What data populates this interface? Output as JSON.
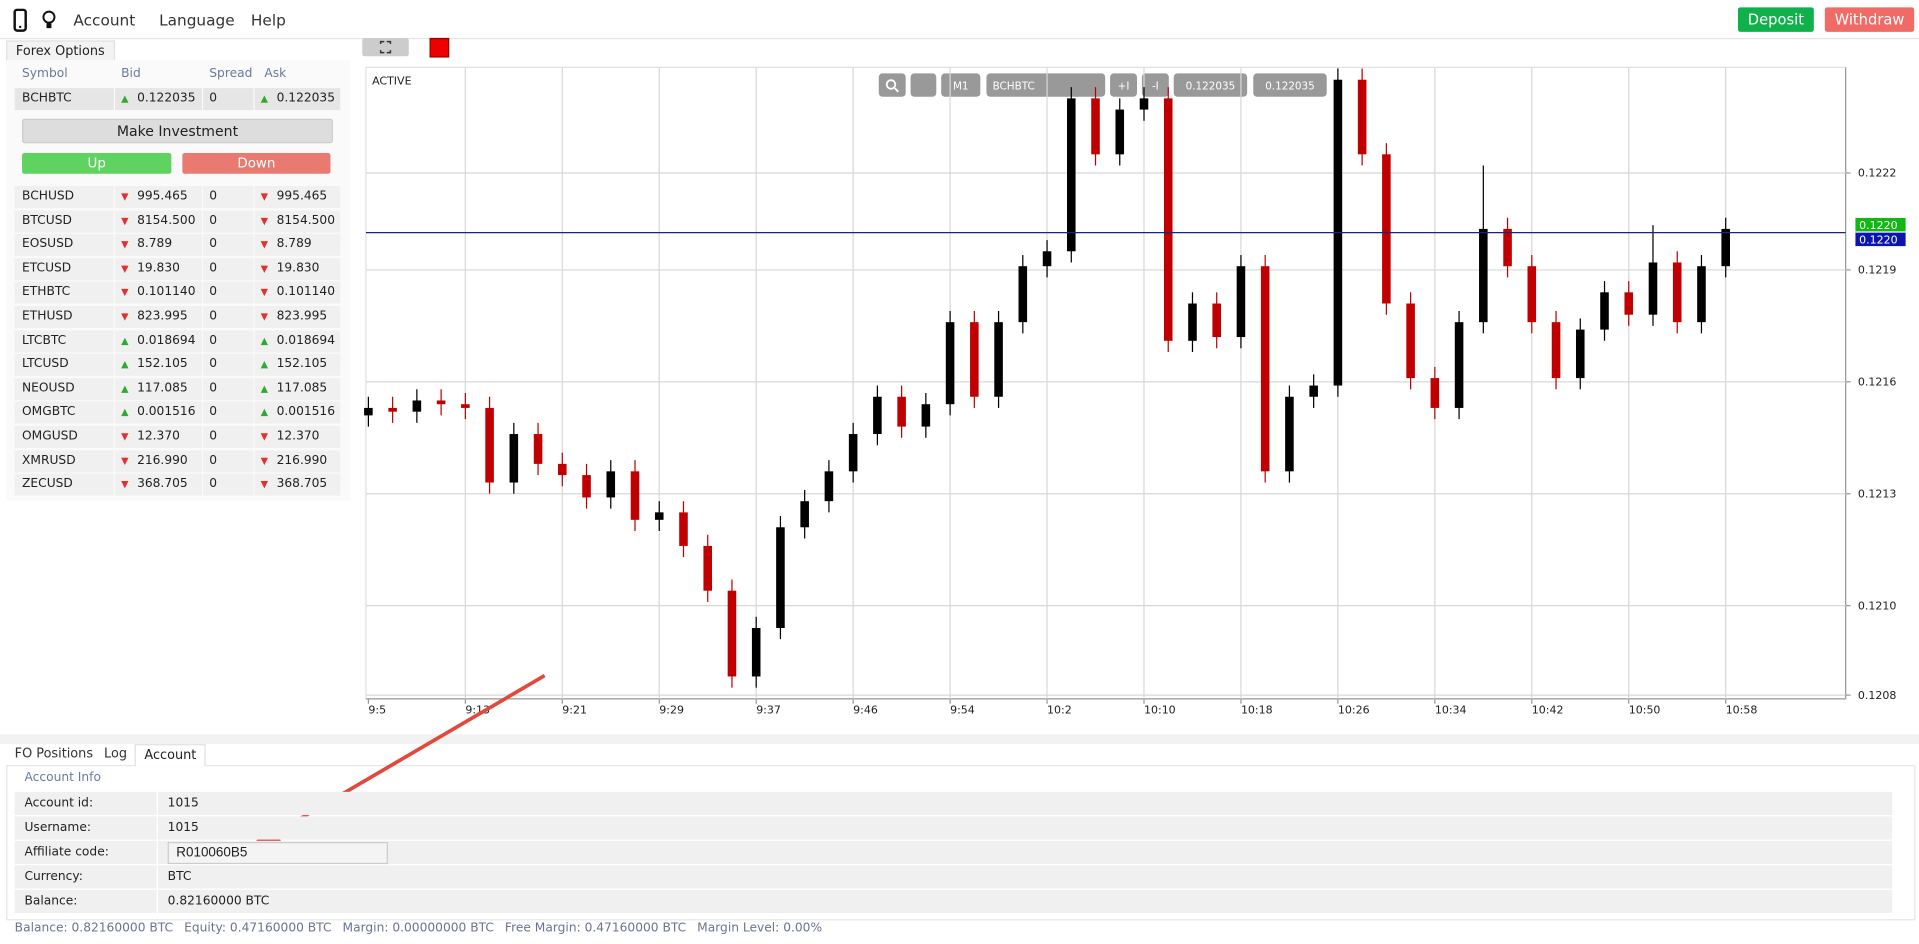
{
  "header": {
    "nav": [
      "Account",
      "Language",
      "Help"
    ],
    "deposit": "Deposit",
    "withdraw": "Withdraw"
  },
  "panel_tab": "Forex Options",
  "symbols": {
    "columns": [
      "Symbol",
      "Bid",
      "Spread",
      "Ask"
    ],
    "selected": {
      "symbol": "BCHBTC",
      "bid": "0.122035",
      "spread": "0",
      "ask": "0.122035",
      "trend": "up"
    },
    "make_investment": "Make Investment",
    "up": "Up",
    "down": "Down",
    "rows": [
      {
        "symbol": "BCHUSD",
        "bid": "995.465",
        "spread": "0",
        "ask": "995.465",
        "trend": "down"
      },
      {
        "symbol": "BTCUSD",
        "bid": "8154.500",
        "spread": "0",
        "ask": "8154.500",
        "trend": "down"
      },
      {
        "symbol": "EOSUSD",
        "bid": "8.789",
        "spread": "0",
        "ask": "8.789",
        "trend": "down"
      },
      {
        "symbol": "ETCUSD",
        "bid": "19.830",
        "spread": "0",
        "ask": "19.830",
        "trend": "down"
      },
      {
        "symbol": "ETHBTC",
        "bid": "0.101140",
        "spread": "0",
        "ask": "0.101140",
        "trend": "down"
      },
      {
        "symbol": "ETHUSD",
        "bid": "823.995",
        "spread": "0",
        "ask": "823.995",
        "trend": "down"
      },
      {
        "symbol": "LTCBTC",
        "bid": "0.018694",
        "spread": "0",
        "ask": "0.018694",
        "trend": "up"
      },
      {
        "symbol": "LTCUSD",
        "bid": "152.105",
        "spread": "0",
        "ask": "152.105",
        "trend": "up"
      },
      {
        "symbol": "NEOUSD",
        "bid": "117.085",
        "spread": "0",
        "ask": "117.085",
        "trend": "up"
      },
      {
        "symbol": "OMGBTC",
        "bid": "0.001516",
        "spread": "0",
        "ask": "0.001516",
        "trend": "up"
      },
      {
        "symbol": "OMGUSD",
        "bid": "12.370",
        "spread": "0",
        "ask": "12.370",
        "trend": "down"
      },
      {
        "symbol": "XMRUSD",
        "bid": "216.990",
        "spread": "0",
        "ask": "216.990",
        "trend": "down"
      },
      {
        "symbol": "ZECUSD",
        "bid": "368.705",
        "spread": "0",
        "ask": "368.705",
        "trend": "down"
      }
    ]
  },
  "chart_status": "ACTIVE",
  "toolbar": [
    "M1",
    "BCHBTC",
    "+I",
    "-I",
    "0.122035",
    "0.122035"
  ],
  "chart_data": {
    "type": "candlestick",
    "xticks": [
      "9:5",
      "9:13",
      "9:21",
      "9:29",
      "9:37",
      "9:46",
      "9:54",
      "10:2",
      "10:10",
      "10:18",
      "10:26",
      "10:34",
      "10:42",
      "10:50",
      "10:58"
    ],
    "ylim": [
      0.12079,
      0.12248
    ],
    "yticks": [
      {
        "value": 0.1208,
        "label": "0.1208"
      },
      {
        "value": 0.12104,
        "label": "0.1210"
      },
      {
        "value": 0.12134,
        "label": "0.1213"
      },
      {
        "value": 0.12164,
        "label": "0.1216"
      },
      {
        "value": 0.12194,
        "label": "0.1219"
      },
      {
        "value": 0.1222,
        "label": "0.1222"
      }
    ],
    "grid": true,
    "up_color": "#000000",
    "down_color": "#c00000",
    "open": [
      0.12155,
      0.12157,
      0.12156,
      0.12159,
      0.12158,
      0.12157,
      0.12137,
      0.1215,
      0.12142,
      0.12139,
      0.12133,
      0.1214,
      0.12127,
      0.12129,
      0.1212,
      0.12108,
      0.12085,
      0.12098,
      0.12125,
      0.12132,
      0.1214,
      0.1215,
      0.1216,
      0.12152,
      0.12158,
      0.1218,
      0.1216,
      0.1218,
      0.12195,
      0.12199,
      0.1224,
      0.12225,
      0.12237,
      0.1224,
      0.12175,
      0.12185,
      0.12176,
      0.12195,
      0.1214,
      0.1216,
      0.12163,
      0.12245,
      0.12225,
      0.12185,
      0.12165,
      0.12157,
      0.1218,
      0.12205,
      0.12195,
      0.1218,
      0.12165,
      0.12178,
      0.12188,
      0.12182,
      0.12196,
      0.1218,
      0.12195
    ],
    "high": [
      0.1216,
      0.1216,
      0.12162,
      0.12162,
      0.12161,
      0.1216,
      0.12153,
      0.12153,
      0.12145,
      0.12142,
      0.12143,
      0.12143,
      0.12132,
      0.12132,
      0.12123,
      0.12111,
      0.12101,
      0.12128,
      0.12135,
      0.12143,
      0.12153,
      0.12163,
      0.12163,
      0.12161,
      0.12183,
      0.12183,
      0.12183,
      0.12198,
      0.12202,
      0.12243,
      0.12243,
      0.1224,
      0.12243,
      0.12243,
      0.12188,
      0.12188,
      0.12198,
      0.12198,
      0.12163,
      0.12166,
      0.12248,
      0.12248,
      0.12228,
      0.12188,
      0.12168,
      0.12183,
      0.12222,
      0.12208,
      0.12198,
      0.12183,
      0.12181,
      0.12191,
      0.12191,
      0.12206,
      0.12199,
      0.12198,
      0.12208
    ],
    "low": [
      0.12152,
      0.12153,
      0.12153,
      0.12155,
      0.12154,
      0.12134,
      0.12134,
      0.12139,
      0.12136,
      0.1213,
      0.1213,
      0.12124,
      0.12124,
      0.12117,
      0.12105,
      0.12082,
      0.12082,
      0.12095,
      0.12122,
      0.12129,
      0.12137,
      0.12147,
      0.12149,
      0.12149,
      0.12155,
      0.12157,
      0.12157,
      0.12177,
      0.12192,
      0.12196,
      0.12222,
      0.12222,
      0.12234,
      0.12172,
      0.12172,
      0.12173,
      0.12173,
      0.12137,
      0.12137,
      0.12157,
      0.1216,
      0.12222,
      0.12182,
      0.12162,
      0.12154,
      0.12154,
      0.12177,
      0.12192,
      0.12177,
      0.12162,
      0.12162,
      0.12175,
      0.12179,
      0.12179,
      0.12177,
      0.12177,
      0.12192
    ],
    "close": [
      0.12157,
      0.12156,
      0.12159,
      0.12158,
      0.12157,
      0.12137,
      0.1215,
      0.12142,
      0.12139,
      0.12133,
      0.1214,
      0.12127,
      0.12129,
      0.1212,
      0.12108,
      0.12085,
      0.12098,
      0.12125,
      0.12132,
      0.1214,
      0.1215,
      0.1216,
      0.12152,
      0.12158,
      0.1218,
      0.1216,
      0.1218,
      0.12195,
      0.12199,
      0.1224,
      0.12225,
      0.12237,
      0.1224,
      0.12175,
      0.12185,
      0.12176,
      0.12195,
      0.1214,
      0.1216,
      0.12163,
      0.12245,
      0.12225,
      0.12185,
      0.12165,
      0.12157,
      0.1218,
      0.12205,
      0.12195,
      0.1218,
      0.12165,
      0.12178,
      0.12188,
      0.12182,
      0.12196,
      0.1218,
      0.12195,
      0.12205
    ],
    "price_line": {
      "value": 0.12204,
      "labels": [
        "0.1220",
        "0.1220"
      ],
      "colors": [
        "#12b812",
        "#0a14b0"
      ],
      "line_color": "#1a237e"
    }
  },
  "bottom": {
    "tabs": [
      "FO Positions",
      "Log",
      "Account"
    ],
    "section": "Account Info",
    "fields": [
      {
        "label": "Account id:",
        "value": "1015"
      },
      {
        "label": "Username:",
        "value": "1015"
      },
      {
        "label": "Affiliate code:",
        "value": "R010060B5",
        "editable": true
      },
      {
        "label": "Currency:",
        "value": "BTC"
      },
      {
        "label": "Balance:",
        "value": "0.82160000 BTC"
      }
    ],
    "footer": [
      "Balance: 0.82160000 BTC",
      "Equity: 0.47160000 BTC",
      "Margin: 0.00000000 BTC",
      "Free Margin: 0.47160000 BTC",
      "Margin Level: 0.00%"
    ]
  }
}
